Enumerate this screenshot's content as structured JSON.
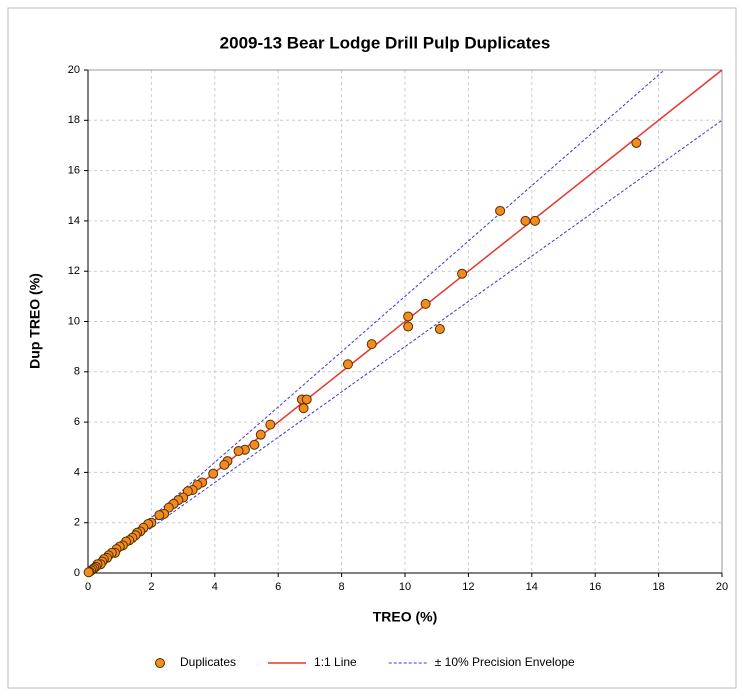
{
  "chart_data": {
    "type": "scatter",
    "title": "2009-13 Bear Lodge Drill Pulp Duplicates",
    "xlabel": "TREO (%)",
    "ylabel": "Dup TREO (%)",
    "xlim": [
      0,
      20
    ],
    "ylim": [
      0,
      20
    ],
    "xticks": [
      0,
      2,
      4,
      6,
      8,
      10,
      12,
      14,
      16,
      18,
      20
    ],
    "yticks": [
      0,
      2,
      4,
      6,
      8,
      10,
      12,
      14,
      16,
      18,
      20
    ],
    "grid": true,
    "legend": "bottom",
    "series": [
      {
        "name": "Duplicates",
        "type": "scatter",
        "color": "#f28c1e",
        "x": [
          17.3,
          14.1,
          13.8,
          13.0,
          11.8,
          11.1,
          10.65,
          10.1,
          10.1,
          8.95,
          8.2,
          6.75,
          6.9,
          6.8,
          5.75,
          5.45,
          5.25,
          4.95,
          4.75,
          4.4,
          4.3,
          3.95,
          3.6,
          3.45,
          3.3,
          3.15,
          3.0,
          2.85,
          2.7,
          2.55,
          2.4,
          2.25,
          2.0,
          1.9,
          1.75,
          1.65,
          1.55,
          1.5,
          1.4,
          1.3,
          1.2,
          1.1,
          1.0,
          0.9,
          0.85,
          0.75,
          0.65,
          0.6,
          0.5,
          0.45,
          0.4,
          0.3,
          0.25,
          0.2,
          0.15,
          0.1,
          0.05,
          0.02
        ],
        "values": [
          17.1,
          14.0,
          14.0,
          14.4,
          11.9,
          9.7,
          10.7,
          10.2,
          9.8,
          9.1,
          8.3,
          6.9,
          6.9,
          6.55,
          5.9,
          5.5,
          5.1,
          4.9,
          4.85,
          4.45,
          4.3,
          3.95,
          3.6,
          3.5,
          3.3,
          3.25,
          3.0,
          2.9,
          2.75,
          2.6,
          2.35,
          2.3,
          2.0,
          1.95,
          1.8,
          1.65,
          1.6,
          1.5,
          1.4,
          1.3,
          1.25,
          1.1,
          1.05,
          0.95,
          0.8,
          0.8,
          0.7,
          0.6,
          0.55,
          0.45,
          0.35,
          0.35,
          0.25,
          0.2,
          0.15,
          0.1,
          0.05,
          0.03
        ]
      },
      {
        "name": "1:1 Line",
        "type": "line",
        "color": "#e8352e",
        "x": [
          0,
          20
        ],
        "values": [
          0,
          20
        ]
      },
      {
        "name": "± 10% Precision Envelope",
        "type": "line",
        "dashed": true,
        "color": "#3a3ad8",
        "x": [
          0,
          18.18,
          null,
          0,
          20
        ],
        "values": [
          0,
          20,
          null,
          0,
          18
        ]
      }
    ]
  }
}
